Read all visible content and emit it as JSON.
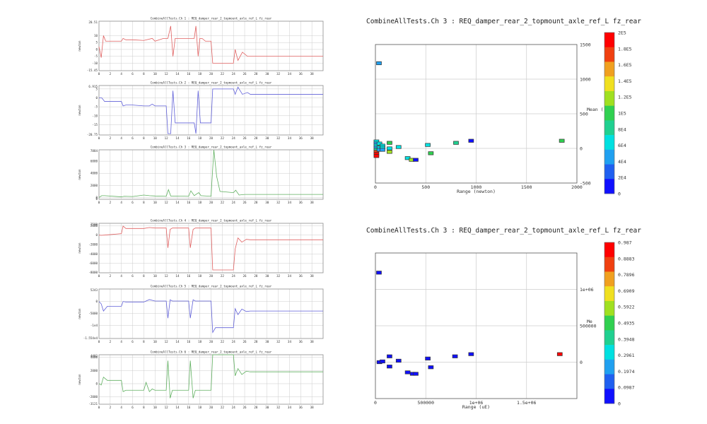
{
  "colors": {
    "red_trace": "#e06060",
    "blue_trace": "#6060d8",
    "green_trace": "#60b060",
    "frame": "#8c8c8c",
    "grid": "#cccccc",
    "heat": [
      "#1010ff",
      "#2060f0",
      "#20a0f0",
      "#00e0e0",
      "#20d090",
      "#30d050",
      "#a0e020",
      "#f0e020",
      "#f0a020",
      "#f04010",
      "#ff0000"
    ]
  },
  "chart_data": [
    {
      "type": "line",
      "panel": "red",
      "ylabel": "newton",
      "title": "CombineAllTests.Ch 1 : REQ_damper_rear_2_topmount_axle_ref_L fz_rear",
      "ymin_label": "-15.45",
      "ymax_label": "20.51",
      "ylim": [
        -15.45,
        20.51
      ],
      "yticks": [
        "10",
        "5",
        "0",
        "-5",
        "-10"
      ],
      "xlim": [
        0,
        40
      ],
      "xticks": [
        "0",
        "2",
        "4",
        "6",
        "8",
        "10",
        "12",
        "14",
        "16",
        "18",
        "20",
        "22",
        "24",
        "26",
        "28",
        "30",
        "32",
        "34",
        "36",
        "38"
      ],
      "x": [
        0,
        0.4,
        0.8,
        1.2,
        4,
        4.3,
        4.8,
        6,
        8,
        9.5,
        10,
        11.5,
        12.3,
        12.8,
        13.2,
        13.6,
        14,
        17,
        17.3,
        17.7,
        18,
        18.4,
        19,
        20,
        20.3,
        22,
        24,
        24.3,
        24.8,
        25.6,
        26.5,
        27,
        40
      ],
      "y": [
        2,
        -6,
        10,
        6,
        6,
        8,
        7,
        7,
        6.5,
        8,
        6,
        8,
        8,
        17,
        -5,
        8,
        8,
        8,
        17,
        -5,
        8,
        8,
        6,
        6,
        -10,
        -10,
        -10,
        0,
        -8,
        -2,
        -5,
        -5,
        -5
      ]
    },
    {
      "type": "line",
      "panel": "blue",
      "ylabel": "newton",
      "title": "CombineAllTests.Ch 2 : REQ_damper_rear_2_topmount_axle_ref_L fz_rear",
      "ymin_label": "-20.75",
      "ymax_label": "6.915",
      "ylim": [
        -20.75,
        6.915
      ],
      "yticks": [
        "5",
        "0",
        "-5",
        "-10",
        "-15"
      ],
      "xlim": [
        0,
        40
      ],
      "xticks": [
        "0",
        "2",
        "4",
        "6",
        "8",
        "10",
        "12",
        "14",
        "16",
        "18",
        "20",
        "22",
        "24",
        "26",
        "28",
        "30",
        "32",
        "34",
        "36",
        "38"
      ],
      "x": [
        0,
        0.5,
        1,
        4,
        4.3,
        4.8,
        6,
        8,
        9,
        9.5,
        10,
        12,
        12.3,
        12.8,
        13.2,
        13.6,
        17,
        17.3,
        17.7,
        18.1,
        20,
        20.3,
        24,
        24.3,
        24.8,
        25.6,
        26.5,
        27,
        40
      ],
      "y": [
        0,
        0,
        -2,
        -2,
        -4.5,
        -4,
        -4,
        -4.5,
        -4.5,
        -3.5,
        -4.5,
        -4.5,
        -20,
        -20,
        4,
        -14,
        -14,
        -20,
        4,
        -14,
        -14,
        5,
        5,
        2,
        6,
        2,
        3,
        2,
        2
      ]
    },
    {
      "type": "line",
      "panel": "green",
      "ylabel": "newton",
      "title": "CombineAllTests.Ch 3 : REQ_damper_rear_2_topmount_axle_ref_L fz_rear",
      "ymin_label": "0",
      "ymax_label": "7884",
      "ylim": [
        -300,
        7884
      ],
      "yticks": [
        "6000",
        "4000",
        "2000",
        "0"
      ],
      "xlim": [
        0,
        40
      ],
      "xticks": [
        "0",
        "2",
        "4",
        "6",
        "8",
        "10",
        "12",
        "14",
        "16",
        "18",
        "20",
        "22",
        "24",
        "26",
        "28",
        "30",
        "32",
        "34",
        "36",
        "38"
      ],
      "x": [
        0,
        0.5,
        1,
        4,
        4.5,
        6,
        8,
        9,
        10,
        12,
        12.4,
        12.8,
        16,
        16.4,
        17,
        17.8,
        18.2,
        20,
        20.5,
        21,
        21.6,
        24,
        24.4,
        25,
        26,
        40
      ],
      "y": [
        0,
        300,
        300,
        100,
        200,
        150,
        400,
        300,
        250,
        200,
        1300,
        250,
        200,
        1100,
        300,
        800,
        300,
        200,
        7884,
        3500,
        1000,
        800,
        1200,
        400,
        500,
        500
      ]
    },
    {
      "type": "line",
      "panel": "red",
      "ylabel": "newton",
      "title": "CombineAllTests.Ch 4 : REQ_damper_rear_2_topmount_axle_ref_L fz_rear",
      "ymin_label": "-8000",
      "ymax_label": "2500",
      "ylim": [
        -8000,
        2500
      ],
      "yticks": [
        "2000",
        "0",
        "-2000",
        "-4000",
        "-6000",
        "-8000"
      ],
      "xlim": [
        0,
        40
      ],
      "xticks": [
        "0",
        "2",
        "4",
        "6",
        "8",
        "10",
        "12",
        "14",
        "16",
        "18",
        "20",
        "22",
        "24",
        "26",
        "28",
        "30",
        "32",
        "34",
        "36",
        "38"
      ],
      "x": [
        0,
        0.4,
        1,
        4,
        4.3,
        4.8,
        8,
        9,
        10,
        12,
        12.3,
        12.7,
        13.1,
        16,
        16.3,
        16.8,
        17.2,
        20,
        20.3,
        24,
        24.3,
        24.8,
        25.5,
        26.3,
        27,
        40
      ],
      "y": [
        0,
        -50,
        0,
        300,
        1900,
        1400,
        1400,
        1600,
        1500,
        1500,
        -2700,
        1200,
        1500,
        1500,
        -2700,
        1200,
        1500,
        1500,
        -7400,
        -7400,
        -3000,
        -600,
        -1500,
        -900,
        -1000,
        -1000
      ]
    },
    {
      "type": "line",
      "panel": "blue",
      "ylabel": "newton",
      "title": "CombineAllTests.Ch 5 : REQ_damper_rear_2_topmount_axle_ref_L fz_rear",
      "ymin_label": "-1.554e4",
      "ymax_label": "5243",
      "ylim": [
        -15540,
        5243
      ],
      "yticks": [
        "5000",
        "0",
        "-5000",
        "-1e4"
      ],
      "xlim": [
        0,
        40
      ],
      "xticks": [
        "0",
        "2",
        "4",
        "6",
        "8",
        "10",
        "12",
        "14",
        "16",
        "18",
        "20",
        "22",
        "24",
        "26",
        "28",
        "30",
        "32",
        "34",
        "36",
        "38"
      ],
      "x": [
        0,
        0.4,
        0.8,
        1.5,
        4,
        4.3,
        4.8,
        8,
        9,
        10,
        12,
        12.3,
        12.7,
        13.1,
        16,
        16.3,
        16.8,
        17.2,
        20,
        20.3,
        20.8,
        24,
        24.3,
        24.8,
        25.5,
        26.3,
        27,
        40
      ],
      "y": [
        0,
        -1000,
        -4000,
        -2000,
        -2000,
        0,
        -200,
        -200,
        800,
        200,
        200,
        -7000,
        700,
        200,
        200,
        -7000,
        700,
        200,
        200,
        -13000,
        -11000,
        -11000,
        -3000,
        -5500,
        -3200,
        -4200,
        -4000,
        -4000
      ]
    },
    {
      "type": "line",
      "panel": "green",
      "ylabel": "newton",
      "title": "CombineAllTests.Ch 6 : REQ_damper_rear_2_topmount_axle_ref_L fz_rear",
      "ymin_label": "-3121",
      "ymax_label": "4402",
      "ylim": [
        -3121,
        4402
      ],
      "yticks": [
        "4000",
        "2000",
        "0",
        "-2000"
      ],
      "xlim": [
        0,
        40
      ],
      "xticks": [
        "0",
        "2",
        "4",
        "6",
        "8",
        "10",
        "12",
        "14",
        "16",
        "18",
        "20",
        "22",
        "24",
        "26",
        "28",
        "30",
        "32",
        "34",
        "36",
        "38"
      ],
      "x": [
        0,
        0.4,
        0.8,
        1.5,
        4,
        4.3,
        4.8,
        8,
        8.4,
        9,
        9.5,
        10,
        12,
        12.3,
        12.7,
        13.1,
        16,
        16.3,
        16.8,
        17.2,
        20,
        20.3,
        24,
        24.3,
        24.8,
        25.5,
        26.3,
        27,
        40
      ],
      "y": [
        0,
        -200,
        1000,
        500,
        500,
        -1200,
        -1000,
        -1000,
        200,
        -1200,
        -800,
        -1000,
        -1000,
        3500,
        -2200,
        -1000,
        -1000,
        3500,
        -2200,
        -1000,
        -1000,
        4402,
        4402,
        1200,
        2300,
        1400,
        1900,
        1800,
        1800
      ]
    },
    {
      "type": "heatmap",
      "title": "CombineAllTests.Ch 3 : REQ_damper_rear_2_topmount_axle_ref_L fz_rear",
      "xlabel": "Range (newton)",
      "ylabel": "Mean (",
      "xlim": [
        0,
        2000
      ],
      "ylim": [
        -500,
        1500
      ],
      "xticks": [
        {
          "v": 0,
          "l": "0"
        },
        {
          "v": 500,
          "l": "500"
        },
        {
          "v": 1000,
          "l": "1000"
        },
        {
          "v": 1500,
          "l": "1500"
        },
        {
          "v": 2000,
          "l": "2000"
        }
      ],
      "yticks": [
        {
          "v": 0,
          "l": "0"
        },
        {
          "v": 500,
          "l": "500"
        },
        {
          "v": 1000,
          "l": "1000"
        },
        {
          "v": 1500,
          "l": "1500"
        },
        {
          "v": -500,
          "l": "-500"
        }
      ],
      "colorbar_labels": [
        "2E5",
        "1.8E5",
        "1.6E5",
        "1.4E5",
        "1.2E5",
        "1E5",
        "8E4",
        "6E4",
        "4E4",
        "2E4",
        "0"
      ],
      "cells": [
        {
          "x": 35,
          "y": 1230,
          "c": 2
        },
        {
          "x": 10,
          "y": 100,
          "c": 3
        },
        {
          "x": 10,
          "y": 70,
          "c": 2
        },
        {
          "x": 10,
          "y": 40,
          "c": 3
        },
        {
          "x": 10,
          "y": 10,
          "c": 2
        },
        {
          "x": 10,
          "y": -20,
          "c": 4
        },
        {
          "x": 10,
          "y": -50,
          "c": 9
        },
        {
          "x": 10,
          "y": -80,
          "c": 10
        },
        {
          "x": 10,
          "y": -110,
          "c": 10
        },
        {
          "x": 40,
          "y": 70,
          "c": 3
        },
        {
          "x": 40,
          "y": 10,
          "c": 3
        },
        {
          "x": 40,
          "y": -20,
          "c": 2
        },
        {
          "x": 70,
          "y": 40,
          "c": 3
        },
        {
          "x": 70,
          "y": 10,
          "c": 3
        },
        {
          "x": 70,
          "y": -20,
          "c": 2
        },
        {
          "x": 140,
          "y": 80,
          "c": 5
        },
        {
          "x": 140,
          "y": 0,
          "c": 3
        },
        {
          "x": 140,
          "y": -50,
          "c": 6
        },
        {
          "x": 230,
          "y": 20,
          "c": 3
        },
        {
          "x": 320,
          "y": -140,
          "c": 3
        },
        {
          "x": 360,
          "y": -165,
          "c": 6
        },
        {
          "x": 400,
          "y": -165,
          "c": 0
        },
        {
          "x": 520,
          "y": 50,
          "c": 3
        },
        {
          "x": 550,
          "y": -70,
          "c": 5
        },
        {
          "x": 800,
          "y": 80,
          "c": 4
        },
        {
          "x": 950,
          "y": 110,
          "c": 0
        },
        {
          "x": 1850,
          "y": 110,
          "c": 5
        }
      ]
    },
    {
      "type": "heatmap",
      "title": "CombineAllTests.Ch 3 : REQ_damper_rear_2_topmount_axle_ref_L fz_rear",
      "xlabel": "Range (uE)",
      "ylabel": "Me",
      "xlim": [
        0,
        2000000
      ],
      "ylim": [
        -500000,
        1500000
      ],
      "xticks": [
        {
          "v": 500000,
          "l": "500000"
        },
        {
          "v": 1000000,
          "l": "1e+06"
        },
        {
          "v": 1500000,
          "l": "1.5e+06"
        }
      ],
      "yticks": [
        {
          "v": 0,
          "l": "0"
        },
        {
          "v": 500000,
          "l": "500000"
        },
        {
          "v": 1000000,
          "l": "1e+06"
        }
      ],
      "xstart_label": "0",
      "colorbar_labels": [
        "0.987",
        "0.8883",
        "0.7896",
        "0.6909",
        "0.5922",
        "0.4935",
        "0.3948",
        "0.2961",
        "0.1974",
        "0.0987",
        "0"
      ],
      "cells": [
        {
          "x": 35000,
          "y": 1230000,
          "c": 0
        },
        {
          "x": 40000,
          "y": 0,
          "c": 0
        },
        {
          "x": 70000,
          "y": 10000,
          "c": 0
        },
        {
          "x": 140000,
          "y": 80000,
          "c": 0
        },
        {
          "x": 140000,
          "y": -60000,
          "c": 0
        },
        {
          "x": 230000,
          "y": 20000,
          "c": 0
        },
        {
          "x": 320000,
          "y": -140000,
          "c": 0
        },
        {
          "x": 370000,
          "y": -160000,
          "c": 0
        },
        {
          "x": 400000,
          "y": -160000,
          "c": 0
        },
        {
          "x": 520000,
          "y": 50000,
          "c": 0
        },
        {
          "x": 550000,
          "y": -70000,
          "c": 0
        },
        {
          "x": 790000,
          "y": 80000,
          "c": 0
        },
        {
          "x": 950000,
          "y": 110000,
          "c": 0
        },
        {
          "x": 1830000,
          "y": 110000,
          "c": 10
        }
      ]
    }
  ]
}
